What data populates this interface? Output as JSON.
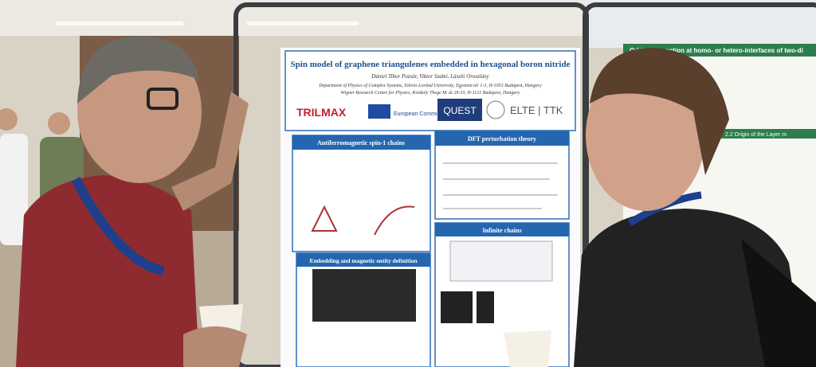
{
  "left_poster": {
    "title": "Spin model of graphene triangulenes embedded in hexagonal boron nitride",
    "authors": "Dániel Tibor Pozsár, Viktor Szabó, László Oroszlány",
    "affiliations": [
      "Department of Physics of Complex Systems, Eötvös Loránd University, Egyetem tér 1-3, H-1053 Budapest, Hungary",
      "Wigner Research Centre for Physics, Konkoly Thege M. út 29-33, H-1121 Budapest, Hungary"
    ],
    "logos": [
      "TRILMAX",
      "European Commission",
      "QUEST",
      "ELTE | TTK"
    ],
    "sections": [
      {
        "heading": "Antiferromagnetic spin-1 chains"
      },
      {
        "heading": "DFT perturbation theory"
      },
      {
        "heading": "Infinite chains"
      },
      {
        "heading": "Embedding and magnetic entity definition"
      }
    ]
  },
  "right_poster": {
    "title": "Orbital interaction at homo- or hetero-interfaces of two-di",
    "section": "2.2 Origin of the Layer m"
  }
}
